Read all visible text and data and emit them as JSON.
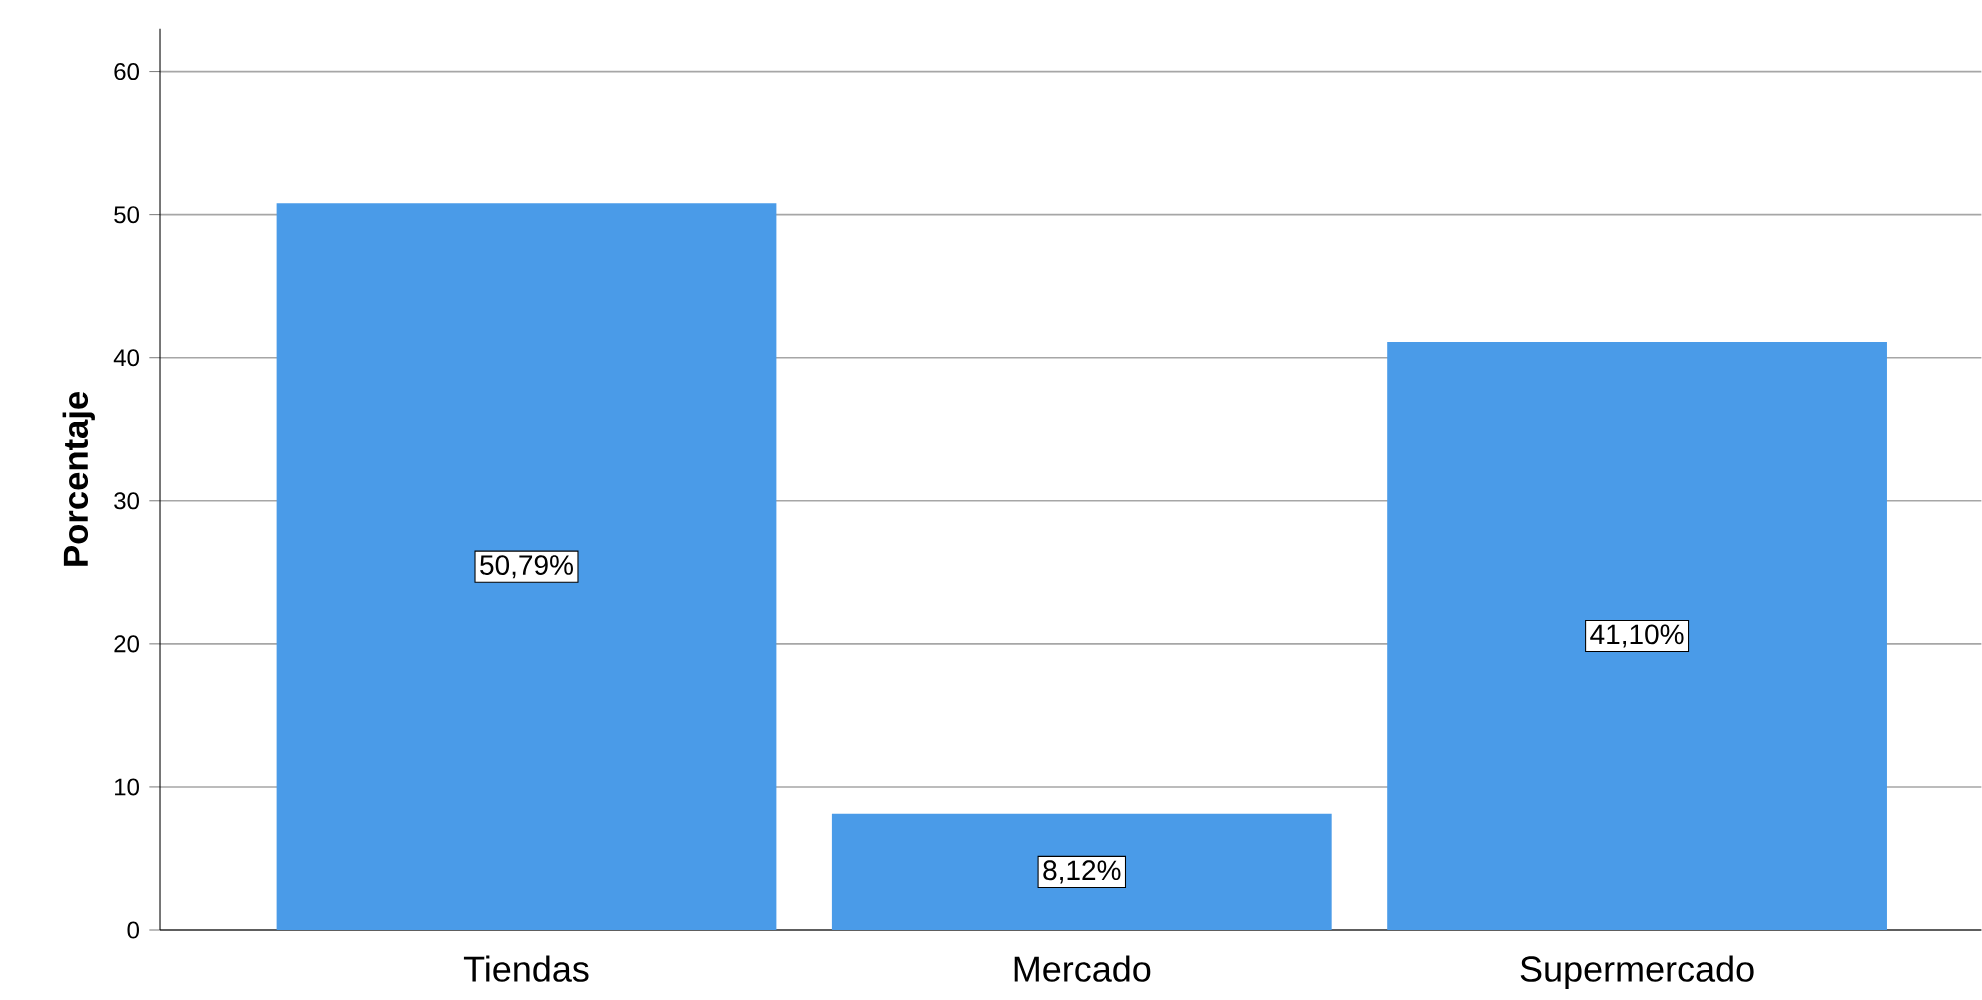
{
  "chart_data": {
    "type": "bar",
    "ylabel": "Porcentaje",
    "categories": [
      "Tiendas",
      "Mercado",
      "Supermercado"
    ],
    "values": [
      50.79,
      8.12,
      41.1
    ],
    "value_labels": [
      "50,79%",
      "8,12%",
      "41,10%"
    ],
    "color": "#4a9be8",
    "ylim": [
      0,
      63
    ],
    "yticks": [
      0,
      10,
      20,
      30,
      40,
      50,
      60
    ],
    "grid": "y"
  }
}
